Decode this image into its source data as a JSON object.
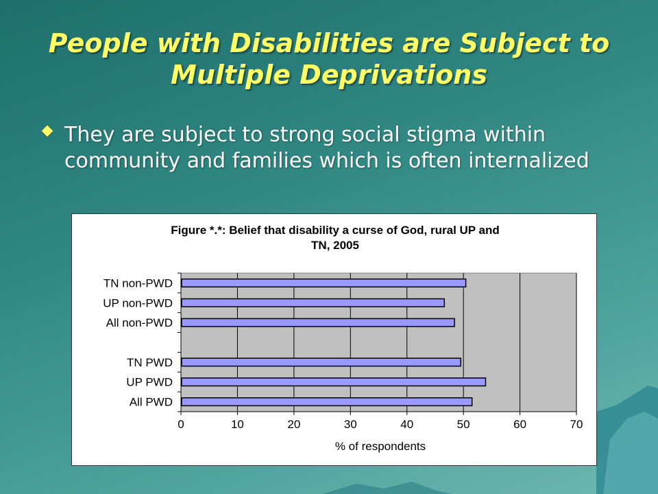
{
  "slide": {
    "title": "People with Disabilities are Subject to Multiple Deprivations",
    "bullet": "They are subject to strong social stigma within community and families which is often internalized"
  },
  "chart_data": {
    "type": "bar",
    "orientation": "horizontal",
    "title_line1": "Figure *.*: Belief that disability a curse of God, rural UP and",
    "title_line2": "TN, 2005",
    "xlabel": "% of respondents",
    "xlim": [
      0,
      70
    ],
    "xticks": [
      0,
      10,
      20,
      30,
      40,
      50,
      60,
      70
    ],
    "categories": [
      "TN non-PWD",
      "UP non-PWD",
      "All non-PWD",
      "",
      "TN PWD",
      "UP PWD",
      "All PWD"
    ],
    "values": [
      50.3,
      46.5,
      48.3,
      null,
      49.4,
      53.8,
      51.4
    ],
    "grid": true,
    "bar_color": "#9999ff",
    "plot_bg": "#c0c0c0"
  }
}
